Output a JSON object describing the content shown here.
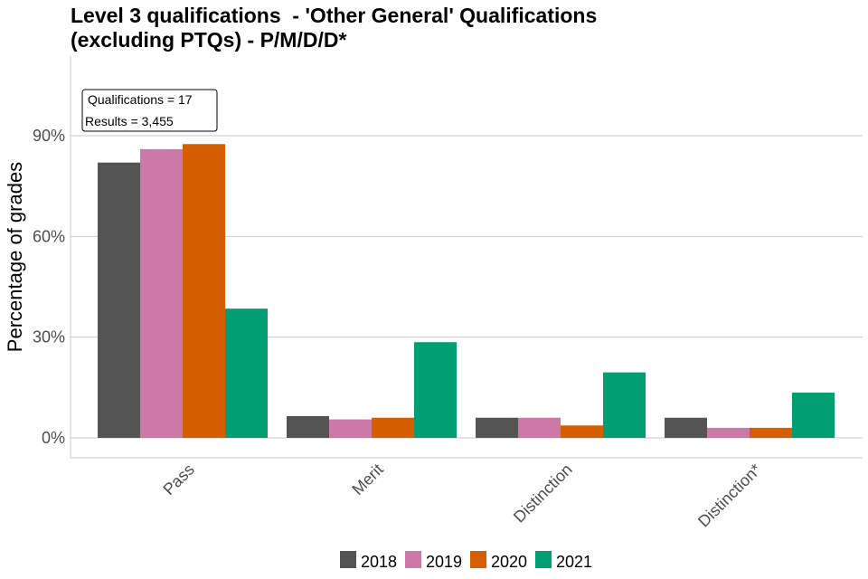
{
  "chart_data": {
    "type": "bar",
    "title_lines": [
      "Level 3 qualifications  - 'Other General' Qualifications",
      "(excluding PTQs) - P/M/D/D*"
    ],
    "xlabel": "",
    "ylabel": "Percentage of grades",
    "ylim": [
      0,
      0.9
    ],
    "yticks": [
      0,
      0.3,
      0.6,
      0.9
    ],
    "ytick_labels": [
      "0%",
      "30%",
      "60%",
      "90%"
    ],
    "categories": [
      "Pass",
      "Merit",
      "Distinction",
      "Distinction*"
    ],
    "series": [
      {
        "name": "2018",
        "color": "#545454",
        "values": [
          0.82,
          0.065,
          0.06,
          0.06
        ]
      },
      {
        "name": "2019",
        "color": "#cc79a7",
        "values": [
          0.86,
          0.055,
          0.06,
          0.03
        ]
      },
      {
        "name": "2020",
        "color": "#d55e00",
        "values": [
          0.875,
          0.06,
          0.037,
          0.03
        ]
      },
      {
        "name": "2021",
        "color": "#009e73",
        "values": [
          0.385,
          0.285,
          0.195,
          0.135
        ]
      }
    ],
    "annotation": [
      "Qualifications = 17",
      "Results = 3,455"
    ],
    "legend_position": "bottom",
    "grid": true
  }
}
